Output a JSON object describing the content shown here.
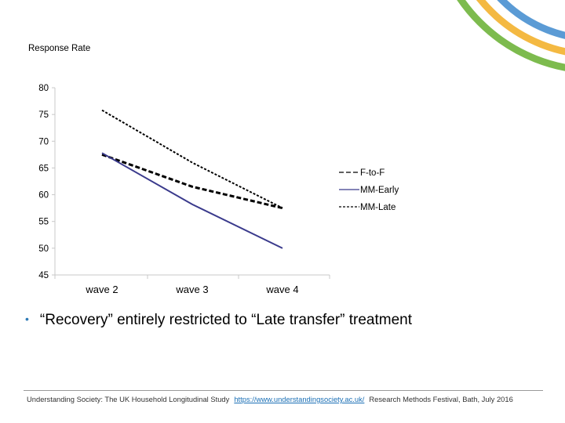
{
  "decoration": {
    "arc_colors": [
      "#5b9bd5",
      "#f4b942",
      "#7dbb4e"
    ]
  },
  "chart_data": {
    "type": "line",
    "ylabel": "Response Rate",
    "categories": [
      "wave 2",
      "wave 3",
      "wave 4"
    ],
    "yticks": [
      "80",
      "75",
      "70",
      "65",
      "60",
      "55",
      "50",
      "45"
    ],
    "ylim": [
      45,
      80
    ],
    "grid": false,
    "legend_position": "right",
    "series": [
      {
        "name": "F-to-F",
        "values": [
          67.5,
          61.5,
          57.5
        ],
        "style": "dashed-thick",
        "color": "#000000"
      },
      {
        "name": "MM-Early",
        "values": [
          67.8,
          58.2,
          50.0
        ],
        "style": "solid",
        "color": "#3a3a8c"
      },
      {
        "name": "MM-Late",
        "values": [
          75.8,
          66.0,
          57.5
        ],
        "style": "dotted",
        "color": "#000000"
      }
    ]
  },
  "bullet": {
    "symbol": "•",
    "text": "“Recovery” entirely restricted to “Late transfer” treatment"
  },
  "footer": {
    "study": "Understanding Society: The UK Household Longitudinal Study",
    "url": "https://www.understandingsociety.ac.uk/",
    "event": "Research Methods Festival, Bath, July 2016"
  }
}
